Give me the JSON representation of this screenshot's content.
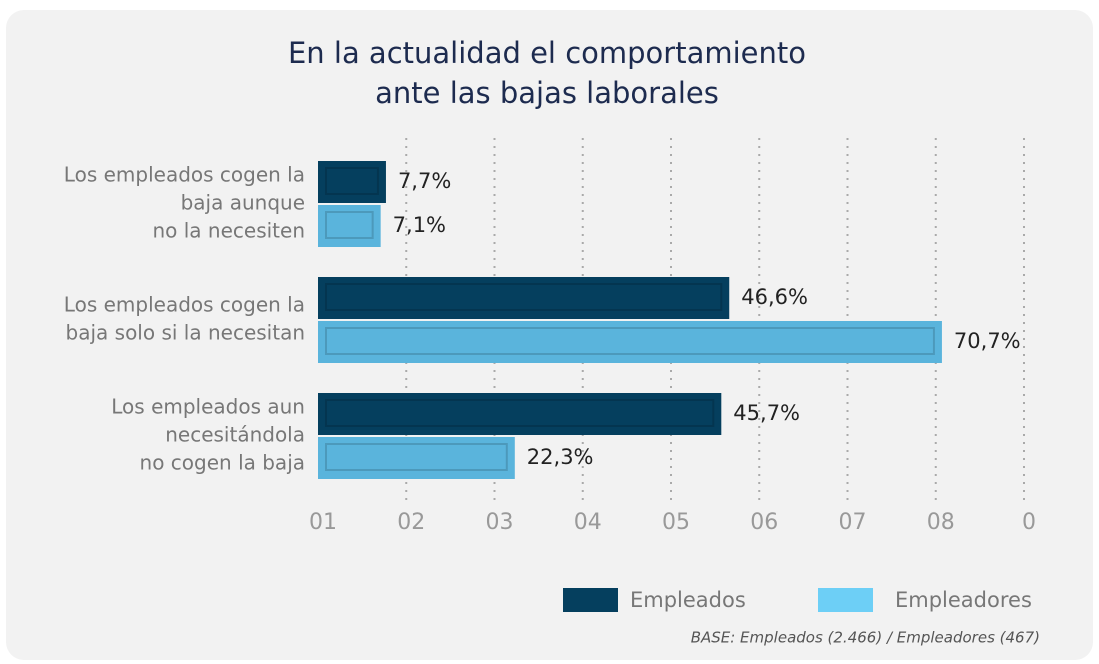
{
  "chart_data": {
    "type": "hbar",
    "title": [
      "En la actualidad el comportamiento",
      "ante las bajas laborales"
    ],
    "categories": [
      [
        "Los empleados cogen la",
        "baja aunque",
        "no la necesiten"
      ],
      [
        "Los empleados cogen la",
        "baja solo si la necesitan"
      ],
      [
        "Los empleados aun",
        "necesitándola",
        "no cogen la baja"
      ]
    ],
    "series": [
      {
        "name": "Empleados",
        "color": "#053f5e",
        "legend_color": "#053f5e",
        "values": [
          7.7,
          46.6,
          45.7
        ],
        "value_labels": [
          "7,7%",
          "46,6%",
          "45,7%"
        ]
      },
      {
        "name": "Empleadores",
        "color": "#5ab4dc",
        "legend_color": "#6dcff6",
        "values": [
          7.1,
          70.7,
          22.3
        ],
        "value_labels": [
          "7,1%",
          "70,7%",
          "22,3%"
        ]
      }
    ],
    "xlim": [
      0,
      80
    ],
    "xticks": [
      {
        "value": 0,
        "label": "01"
      },
      {
        "value": 10,
        "label": "02"
      },
      {
        "value": 20,
        "label": "03"
      },
      {
        "value": 30,
        "label": "04"
      },
      {
        "value": 40,
        "label": "05"
      },
      {
        "value": 50,
        "label": "06"
      },
      {
        "value": 60,
        "label": "07"
      },
      {
        "value": 70,
        "label": "08"
      },
      {
        "value": 80,
        "label": "0"
      }
    ],
    "grid": true,
    "footnote": "BASE: Empleados (2.466) / Empleadores (467)"
  }
}
